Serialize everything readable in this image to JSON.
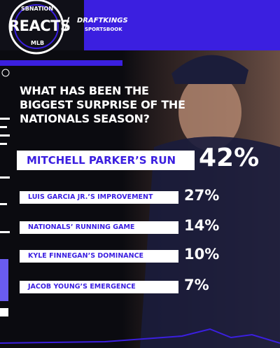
{
  "header": {
    "brand_top": "SBNATION",
    "brand_main": "REACTS",
    "brand_bottom": "MLB",
    "separator": "/",
    "sponsor": "DRAFTKINGS",
    "sponsor_sub": "SPORTSBOOK"
  },
  "question": [
    "WHAT HAS BEEN THE",
    "BIGGEST SURPRISE OF THE",
    "NATIONALS SEASON?"
  ],
  "results": [
    {
      "label": "MITCHELL PARKER’S RUN",
      "percent": "42%"
    },
    {
      "label": "LUIS GARCIA JR.’S IMPROVEMENT",
      "percent": "27%"
    },
    {
      "label": "NATIONALS’ RUNNING GAME",
      "percent": "14%"
    },
    {
      "label": "KYLE FINNEGAN’S DOMINANCE",
      "percent": "10%"
    },
    {
      "label": "JACOB YOUNG’S EMERGENCE",
      "percent": "7%"
    }
  ]
}
